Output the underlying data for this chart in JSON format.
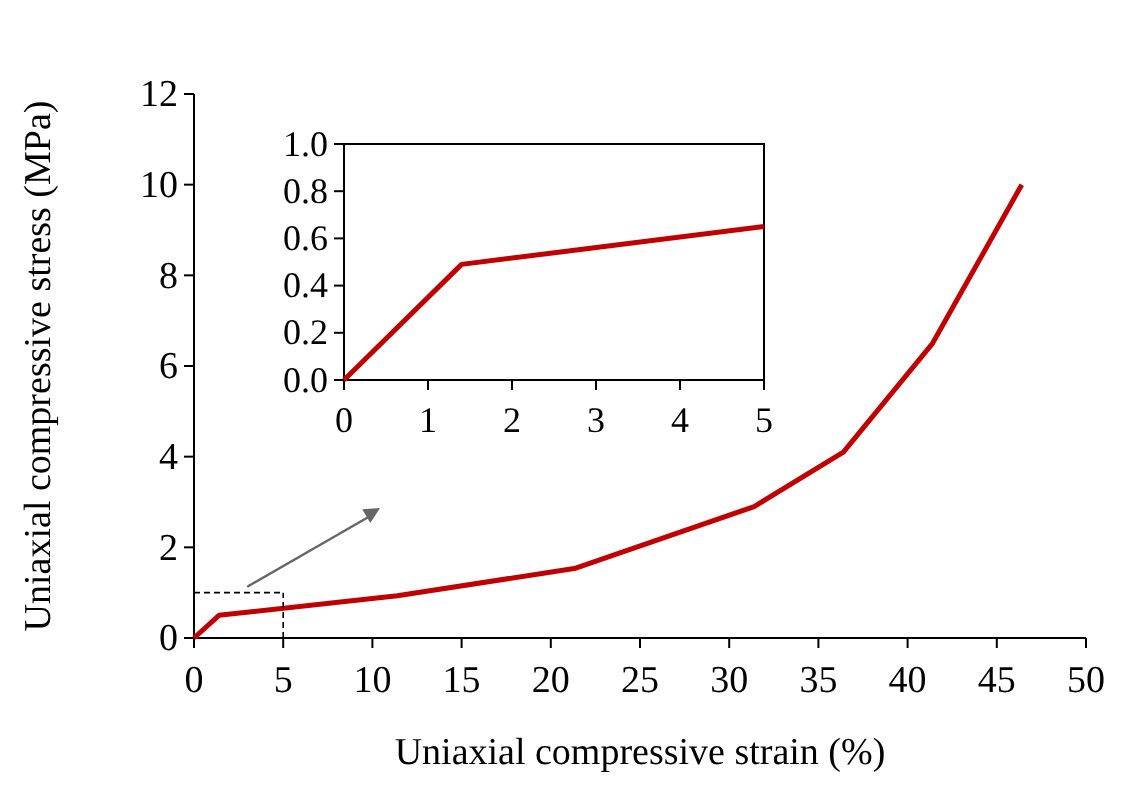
{
  "chart_data": [
    {
      "type": "line",
      "xlabel": "Uniaxial compressive strain (%)",
      "ylabel": "Uniaxial compressive stress (MPa)",
      "xlim": [
        0,
        50
      ],
      "ylim": [
        0,
        12
      ],
      "xticks": [
        0,
        5,
        10,
        15,
        20,
        25,
        30,
        35,
        40,
        45,
        50
      ],
      "yticks": [
        0,
        2,
        4,
        6,
        8,
        10,
        12
      ],
      "grid": false,
      "ref_lines": [
        {
          "axis": "y",
          "value": 1,
          "color": "#000000",
          "line_style": "dashed"
        },
        {
          "axis": "x",
          "value": 5,
          "color": "#000000",
          "line_style": "dashed"
        }
      ],
      "marker": "none",
      "line_style": "solid",
      "series": [
        {
          "color": "#c00000",
          "x": [
            0,
            1.4,
            11.4,
            21.4,
            31.4,
            36.4,
            41.4,
            46.4
          ],
          "values": [
            0,
            0.5,
            0.93,
            1.54,
            2.9,
            4.1,
            6.5,
            10.0
          ]
        }
      ]
    },
    {
      "type": "line",
      "xlim": [
        0,
        5
      ],
      "ylim": [
        0,
        1
      ],
      "xticks": [
        0,
        1,
        2,
        3,
        4,
        5
      ],
      "yticks": [
        {
          "value": 0,
          "label": "0.0"
        },
        {
          "value": 0.2,
          "label": "0.2"
        },
        {
          "value": 0.4,
          "label": "0.4"
        },
        {
          "value": 0.6,
          "label": "0.6"
        },
        {
          "value": 0.8,
          "label": "0.8"
        },
        {
          "value": 1,
          "label": "1.0"
        }
      ],
      "grid": false,
      "marker": "none",
      "line_style": "solid",
      "series": [
        {
          "color": "#c00000",
          "x": [
            0,
            1.4,
            5
          ],
          "values": [
            0,
            0.49,
            0.65
          ]
        }
      ]
    }
  ]
}
